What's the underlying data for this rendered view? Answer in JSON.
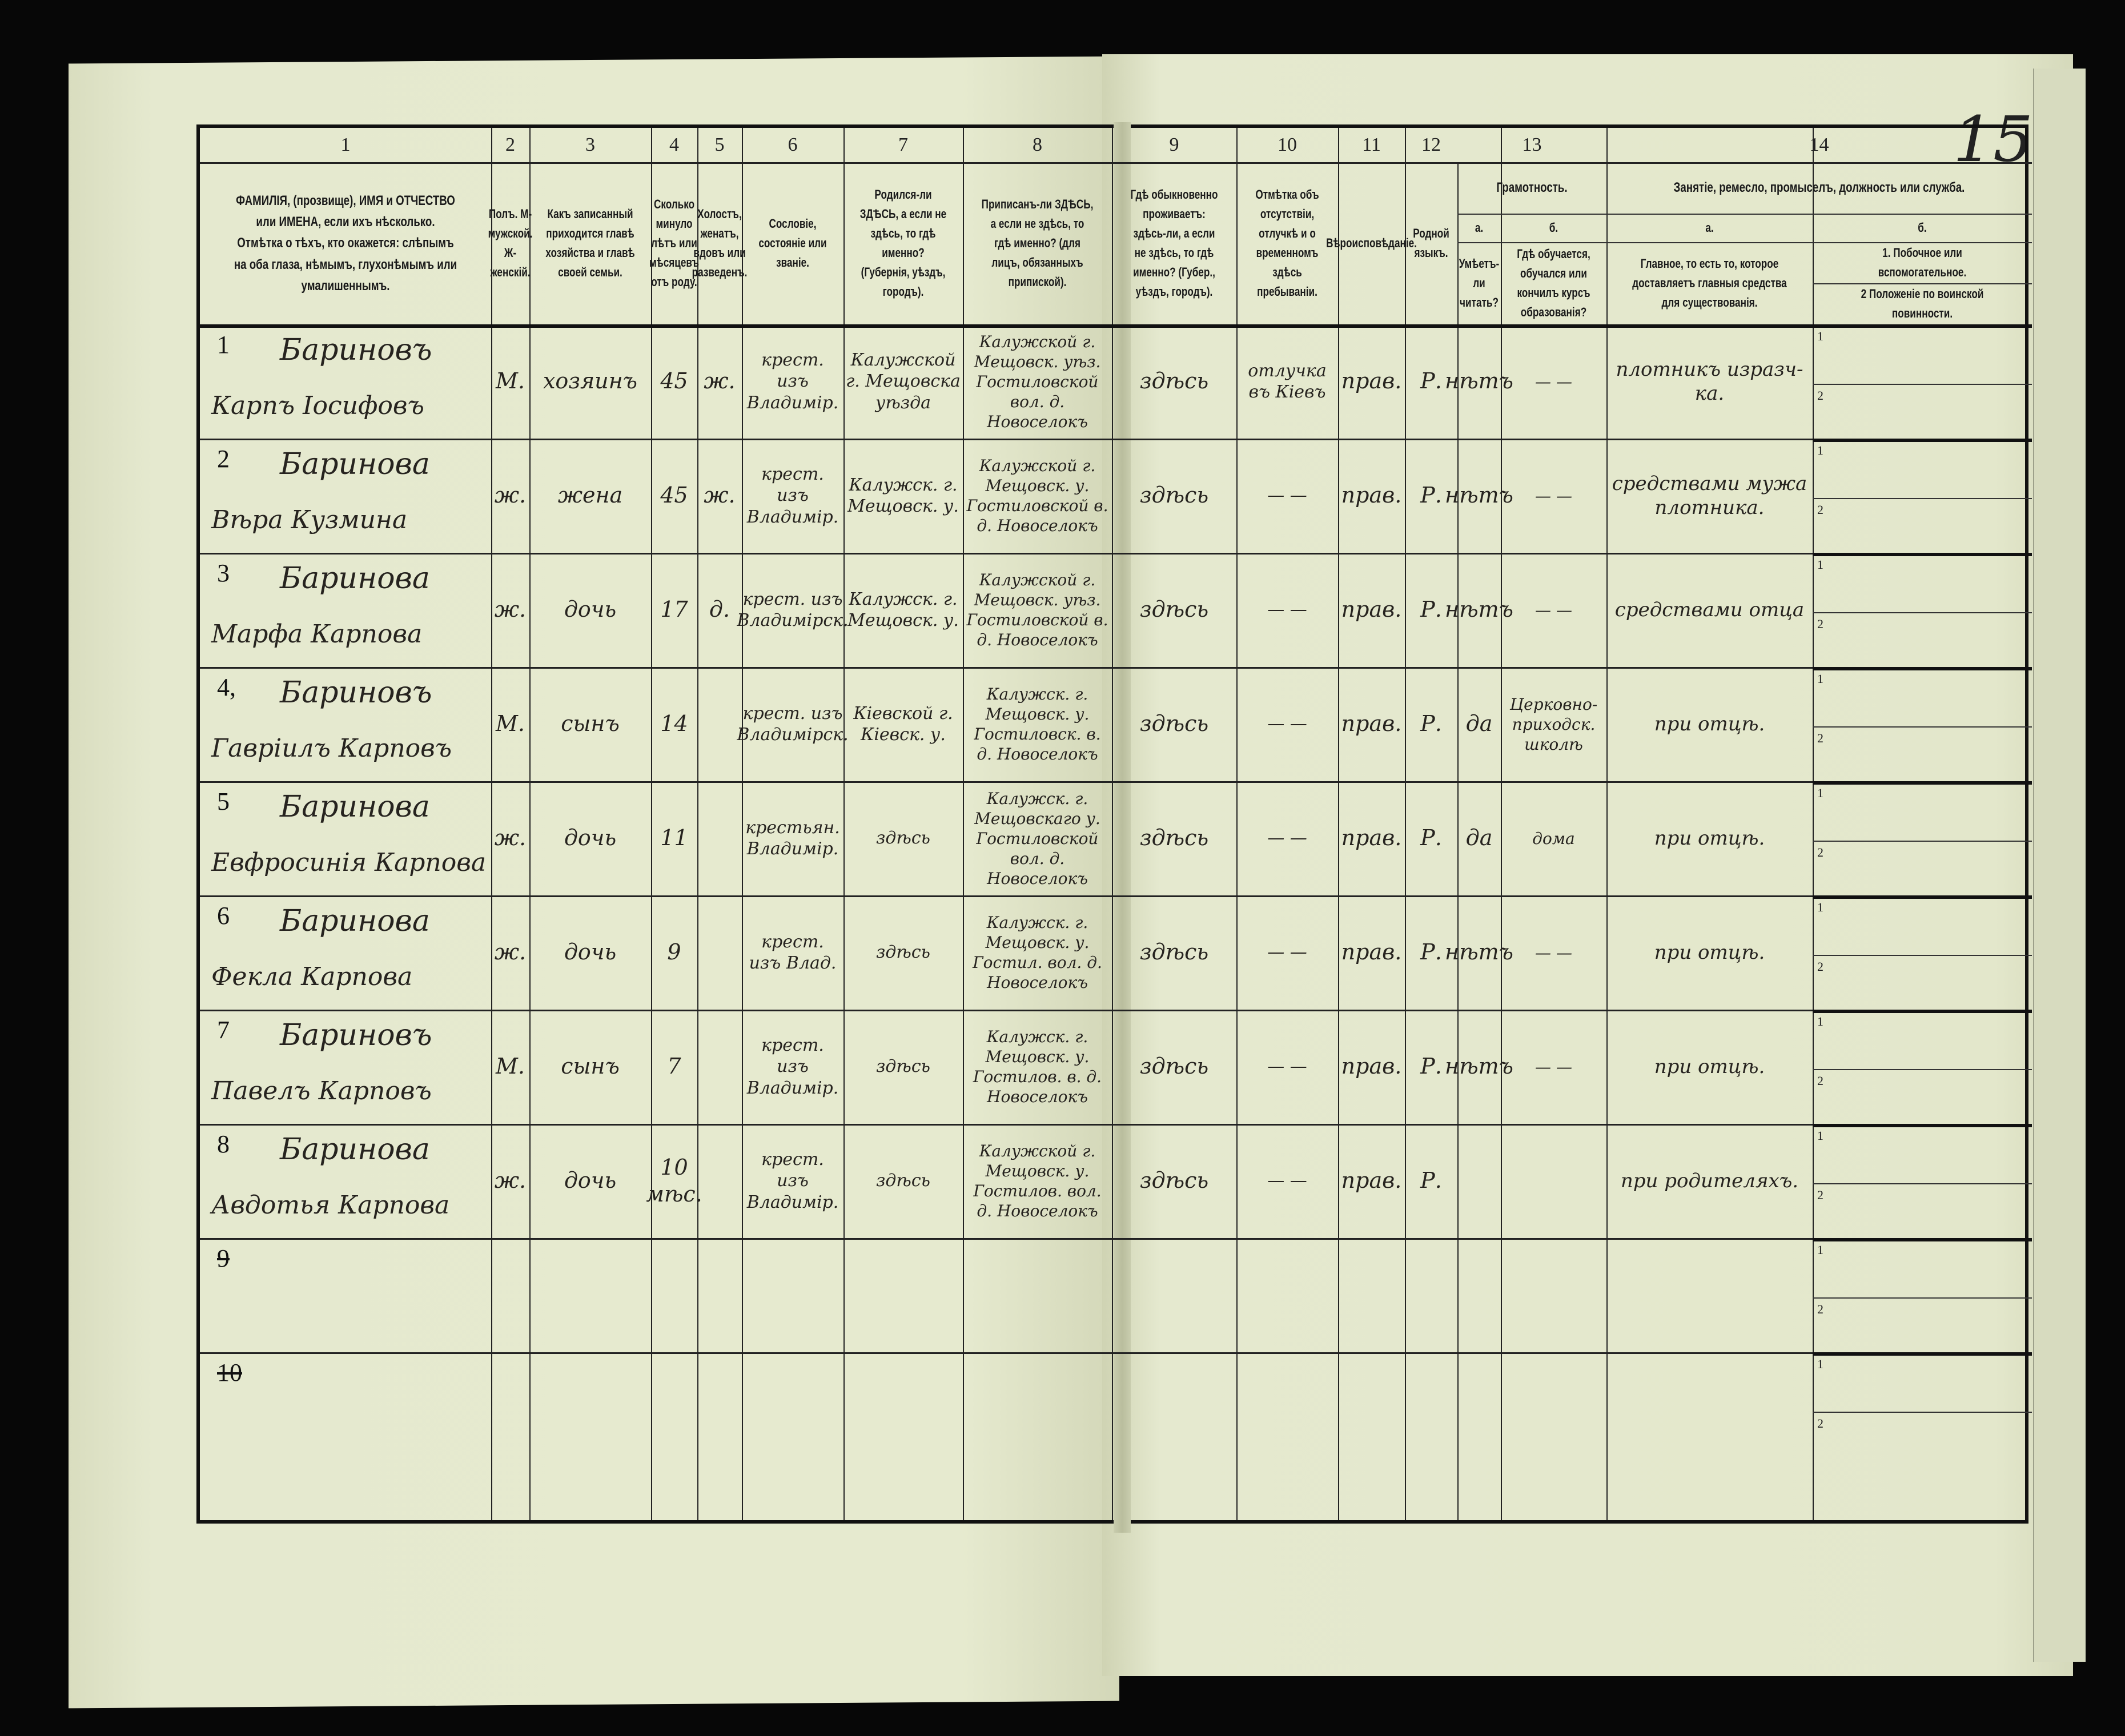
{
  "document": {
    "page_number": "15",
    "column_numbers": [
      "1",
      "2",
      "3",
      "4",
      "5",
      "6",
      "7",
      "8",
      "9",
      "10",
      "11",
      "12",
      "13",
      "14"
    ],
    "headers": {
      "c1": "ФАМИЛІЯ, (прозвище), ИМЯ и ОТЧЕСТВО или ИМЕНА, если ихъ нѣсколько. Отмѣтка о тѣхъ, кто окажется: слѣпымъ на оба глаза, нѣмымъ, глухонѣмымъ или умалишеннымъ.",
      "c2": "Полъ. М-мужской. Ж-женскій.",
      "c3": "Какъ записанный приходится главѣ хозяйства и главѣ своей семьи.",
      "c4": "Сколько минуло лѣтъ или мѣсяцевъ отъ роду.",
      "c5": "Холостъ, женатъ, вдовъ или разведенъ.",
      "c6": "Сословіе, состояніе или званіе.",
      "c7": "Родился-ли ЗДѢСЬ, а если не здѣсь, то гдѣ именно? (Губернія, уѣздъ, городъ).",
      "c8": "Приписанъ-ли ЗДѢСЬ, а если не здѣсь, то гдѣ именно? (для лицъ, обязанныхъ припиской).",
      "c9": "Гдѣ обыкновенно проживаетъ: здѣсь-ли, а если не здѣсь, то гдѣ именно? (Губер., уѣздъ, городъ).",
      "c10": "Отмѣтка объ отсутствіи, отлучкѣ и о временномъ здѣсь пребываніи.",
      "c11": "Вѣроисповѣданіе.",
      "c12": "Родной языкъ.",
      "c13": "Грамотность.",
      "c13a_label": "а.",
      "c13a": "Умѣетъ-ли читать?",
      "c13b_label": "б.",
      "c13b": "Гдѣ обучается, обучался или кончилъ курсъ образованія?",
      "c14": "Занятіе, ремесло, промыселъ, должность или служба.",
      "c14a_label": "а.",
      "c14a": "Главное, то есть то, которое доставляетъ главныя средства для существованія.",
      "c14b_label": "б.",
      "c14b1": "1. Побочное или вспомогательное.",
      "c14b2": "2 Положеніе по воинской повинности."
    },
    "sub_labels": [
      "1",
      "2"
    ],
    "rows": [
      {
        "no": "1",
        "surname": "Бариновъ",
        "name": "Карпъ Іосифовъ",
        "sex": "М.",
        "relation": "хозяинъ",
        "age": "45",
        "marital": "ж.",
        "estate": "крест. изъ Владимір.",
        "born": "Калужской г. Мещовска уѣзда",
        "registered": "Калужской г. Мещовск. уѣз. Гостиловской вол. д. Новоселокъ",
        "residence": "здѣсь",
        "absence": "отлучка въ Кіевъ",
        "religion": "прав.",
        "language": "Р.",
        "literate": "нѣтъ",
        "education": "— —",
        "occupation": "плотникъ изразч-ка."
      },
      {
        "no": "2",
        "surname": "Баринова",
        "name": "Вѣра Кузмина",
        "sex": "ж.",
        "relation": "жена",
        "age": "45",
        "marital": "ж.",
        "estate": "крест. изъ Владимір.",
        "born": "Калужск. г. Мещовск. у.",
        "registered": "Калужской г. Мещовск. у. Гостиловской в. д. Новоселокъ",
        "residence": "здѣсь",
        "absence": "— —",
        "religion": "прав.",
        "language": "Р.",
        "literate": "нѣтъ",
        "education": "— —",
        "occupation": "средствами мужа плотника."
      },
      {
        "no": "3",
        "surname": "Баринова",
        "name": "Марфа Карпова",
        "sex": "ж.",
        "relation": "дочь",
        "age": "17",
        "marital": "д.",
        "estate": "крест. изъ Владимірск.",
        "born": "Калужск. г. Мещовск. у.",
        "registered": "Калужской г. Мещовск. уѣз. Гостиловской в. д. Новоселокъ",
        "residence": "здѣсь",
        "absence": "— —",
        "religion": "прав.",
        "language": "Р.",
        "literate": "нѣтъ",
        "education": "— —",
        "occupation": "средствами отца"
      },
      {
        "no": "4,",
        "surname": "Бариновъ",
        "name": "Гавріилъ Карповъ",
        "sex": "М.",
        "relation": "сынъ",
        "age": "14",
        "marital": "",
        "estate": "крест. изъ Владимірск.",
        "born": "Кіевской г. Кіевск. у.",
        "registered": "Калужск. г. Мещовск. у. Гостиловск. в. д. Новоселокъ",
        "residence": "здѣсь",
        "absence": "— —",
        "religion": "прав.",
        "language": "Р.",
        "literate": "да",
        "education": "Церковно-приходск. школѣ",
        "occupation": "при отцѣ."
      },
      {
        "no": "5",
        "surname": "Баринова",
        "name": "Евфросинія Карпова",
        "sex": "ж.",
        "relation": "дочь",
        "age": "11",
        "marital": "",
        "estate": "крестьян. Владимір.",
        "born": "здѣсь",
        "registered": "Калужск. г. Мещовскаго у. Гостиловской вол. д. Новоселокъ",
        "residence": "здѣсь",
        "absence": "— —",
        "religion": "прав.",
        "language": "Р.",
        "literate": "да",
        "education": "дома",
        "occupation": "при отцѣ."
      },
      {
        "no": "6",
        "surname": "Баринова",
        "name": "Фекла Карпова",
        "sex": "ж.",
        "relation": "дочь",
        "age": "9",
        "marital": "",
        "estate": "крест. изъ Влад.",
        "born": "здѣсь",
        "registered": "Калужск. г. Мещовск. у. Гостил. вол. д. Новоселокъ",
        "residence": "здѣсь",
        "absence": "— —",
        "religion": "прав.",
        "language": "Р.",
        "literate": "нѣтъ",
        "education": "— —",
        "occupation": "при отцѣ."
      },
      {
        "no": "7",
        "surname": "Бариновъ",
        "name": "Павелъ Карповъ",
        "sex": "М.",
        "relation": "сынъ",
        "age": "7",
        "marital": "",
        "estate": "крест. изъ Владимір.",
        "born": "здѣсь",
        "registered": "Калужск. г. Мещовск. у. Гостилов. в. д. Новоселокъ",
        "residence": "здѣсь",
        "absence": "— —",
        "religion": "прав.",
        "language": "Р.",
        "literate": "нѣтъ",
        "education": "— —",
        "occupation": "при отцѣ."
      },
      {
        "no": "8",
        "surname": "Баринова",
        "name": "Авдотья Карпова",
        "sex": "ж.",
        "relation": "дочь",
        "age": "10 мѣс.",
        "marital": "",
        "estate": "крест. изъ Владимір.",
        "born": "здѣсь",
        "registered": "Калужской г. Мещовск. у. Гостилов. вол. д. Новоселокъ",
        "residence": "здѣсь",
        "absence": "— —",
        "religion": "прав.",
        "language": "Р.",
        "literate": "",
        "education": "",
        "occupation": "при родителяхъ."
      },
      {
        "no": "9",
        "surname": "",
        "name": "",
        "sex": "",
        "relation": "",
        "age": "",
        "marital": "",
        "estate": "",
        "born": "",
        "registered": "",
        "residence": "",
        "absence": "",
        "religion": "",
        "language": "",
        "literate": "",
        "education": "",
        "occupation": ""
      },
      {
        "no": "10",
        "surname": "",
        "name": "",
        "sex": "",
        "relation": "",
        "age": "",
        "marital": "",
        "estate": "",
        "born": "",
        "registered": "",
        "residence": "",
        "absence": "",
        "religion": "",
        "language": "",
        "literate": "",
        "education": "",
        "occupation": ""
      }
    ]
  }
}
